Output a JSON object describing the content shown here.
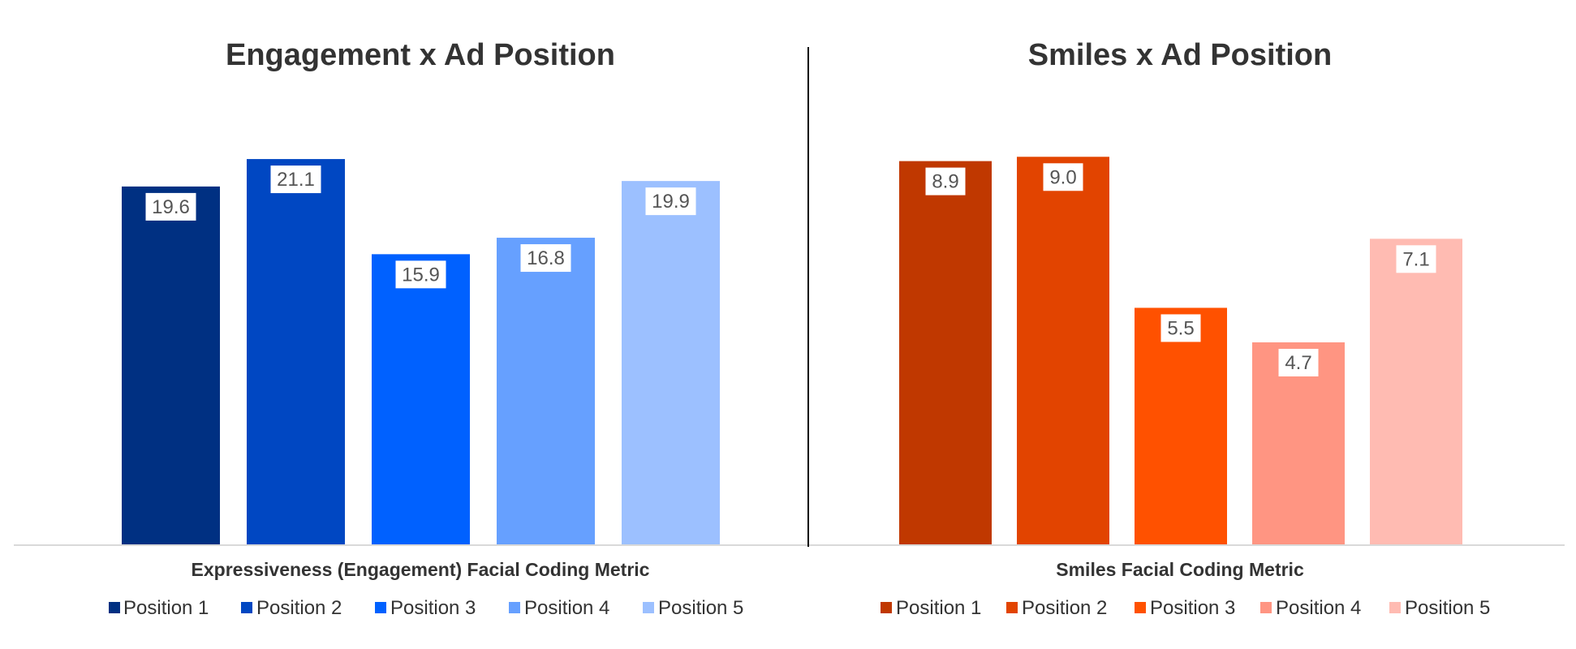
{
  "chart_data": [
    {
      "type": "bar",
      "title": "Engagement x Ad Position",
      "xlabel": "Expressiveness (Engagement) Facial Coding Metric",
      "ylabel": "",
      "categories": [
        "Expressiveness (Engagement) Facial Coding Metric"
      ],
      "series": [
        {
          "name": "Position 1",
          "values": [
            19.6
          ],
          "label": "19.6",
          "color": "#003082"
        },
        {
          "name": "Position 2",
          "values": [
            21.1
          ],
          "label": "21.1",
          "color": "#0047C2"
        },
        {
          "name": "Position 3",
          "values": [
            15.9
          ],
          "label": "15.9",
          "color": "#0061FF"
        },
        {
          "name": "Position 4",
          "values": [
            16.8
          ],
          "label": "16.8",
          "color": "#66A0FF"
        },
        {
          "name": "Position 5",
          "values": [
            19.9
          ],
          "label": "19.9",
          "color": "#9CC0FF"
        }
      ],
      "ylim": [
        0,
        26.6
      ],
      "grid": false,
      "legend": "bottom"
    },
    {
      "type": "bar",
      "title": "Smiles x Ad Position",
      "xlabel": "Smiles Facial Coding Metric",
      "ylabel": "",
      "categories": [
        "Smiles Facial Coding Metric"
      ],
      "series": [
        {
          "name": "Position 1",
          "values": [
            8.9
          ],
          "label": "8.9",
          "color": "#C03800"
        },
        {
          "name": "Position 2",
          "values": [
            9.0
          ],
          "label": "9.0",
          "color": "#E24400"
        },
        {
          "name": "Position 3",
          "values": [
            5.5
          ],
          "label": "5.5",
          "color": "#FF5100"
        },
        {
          "name": "Position 4",
          "values": [
            4.7
          ],
          "label": "4.7",
          "color": "#FF9582"
        },
        {
          "name": "Position 5",
          "values": [
            7.1
          ],
          "label": "7.1",
          "color": "#FFBBB2"
        }
      ],
      "ylim": [
        0,
        11.28
      ],
      "grid": false,
      "legend": "bottom"
    }
  ],
  "colors": {
    "axis": "#D9D9D9",
    "divider": "#000000",
    "text": "#333333",
    "label_text": "#555555"
  }
}
